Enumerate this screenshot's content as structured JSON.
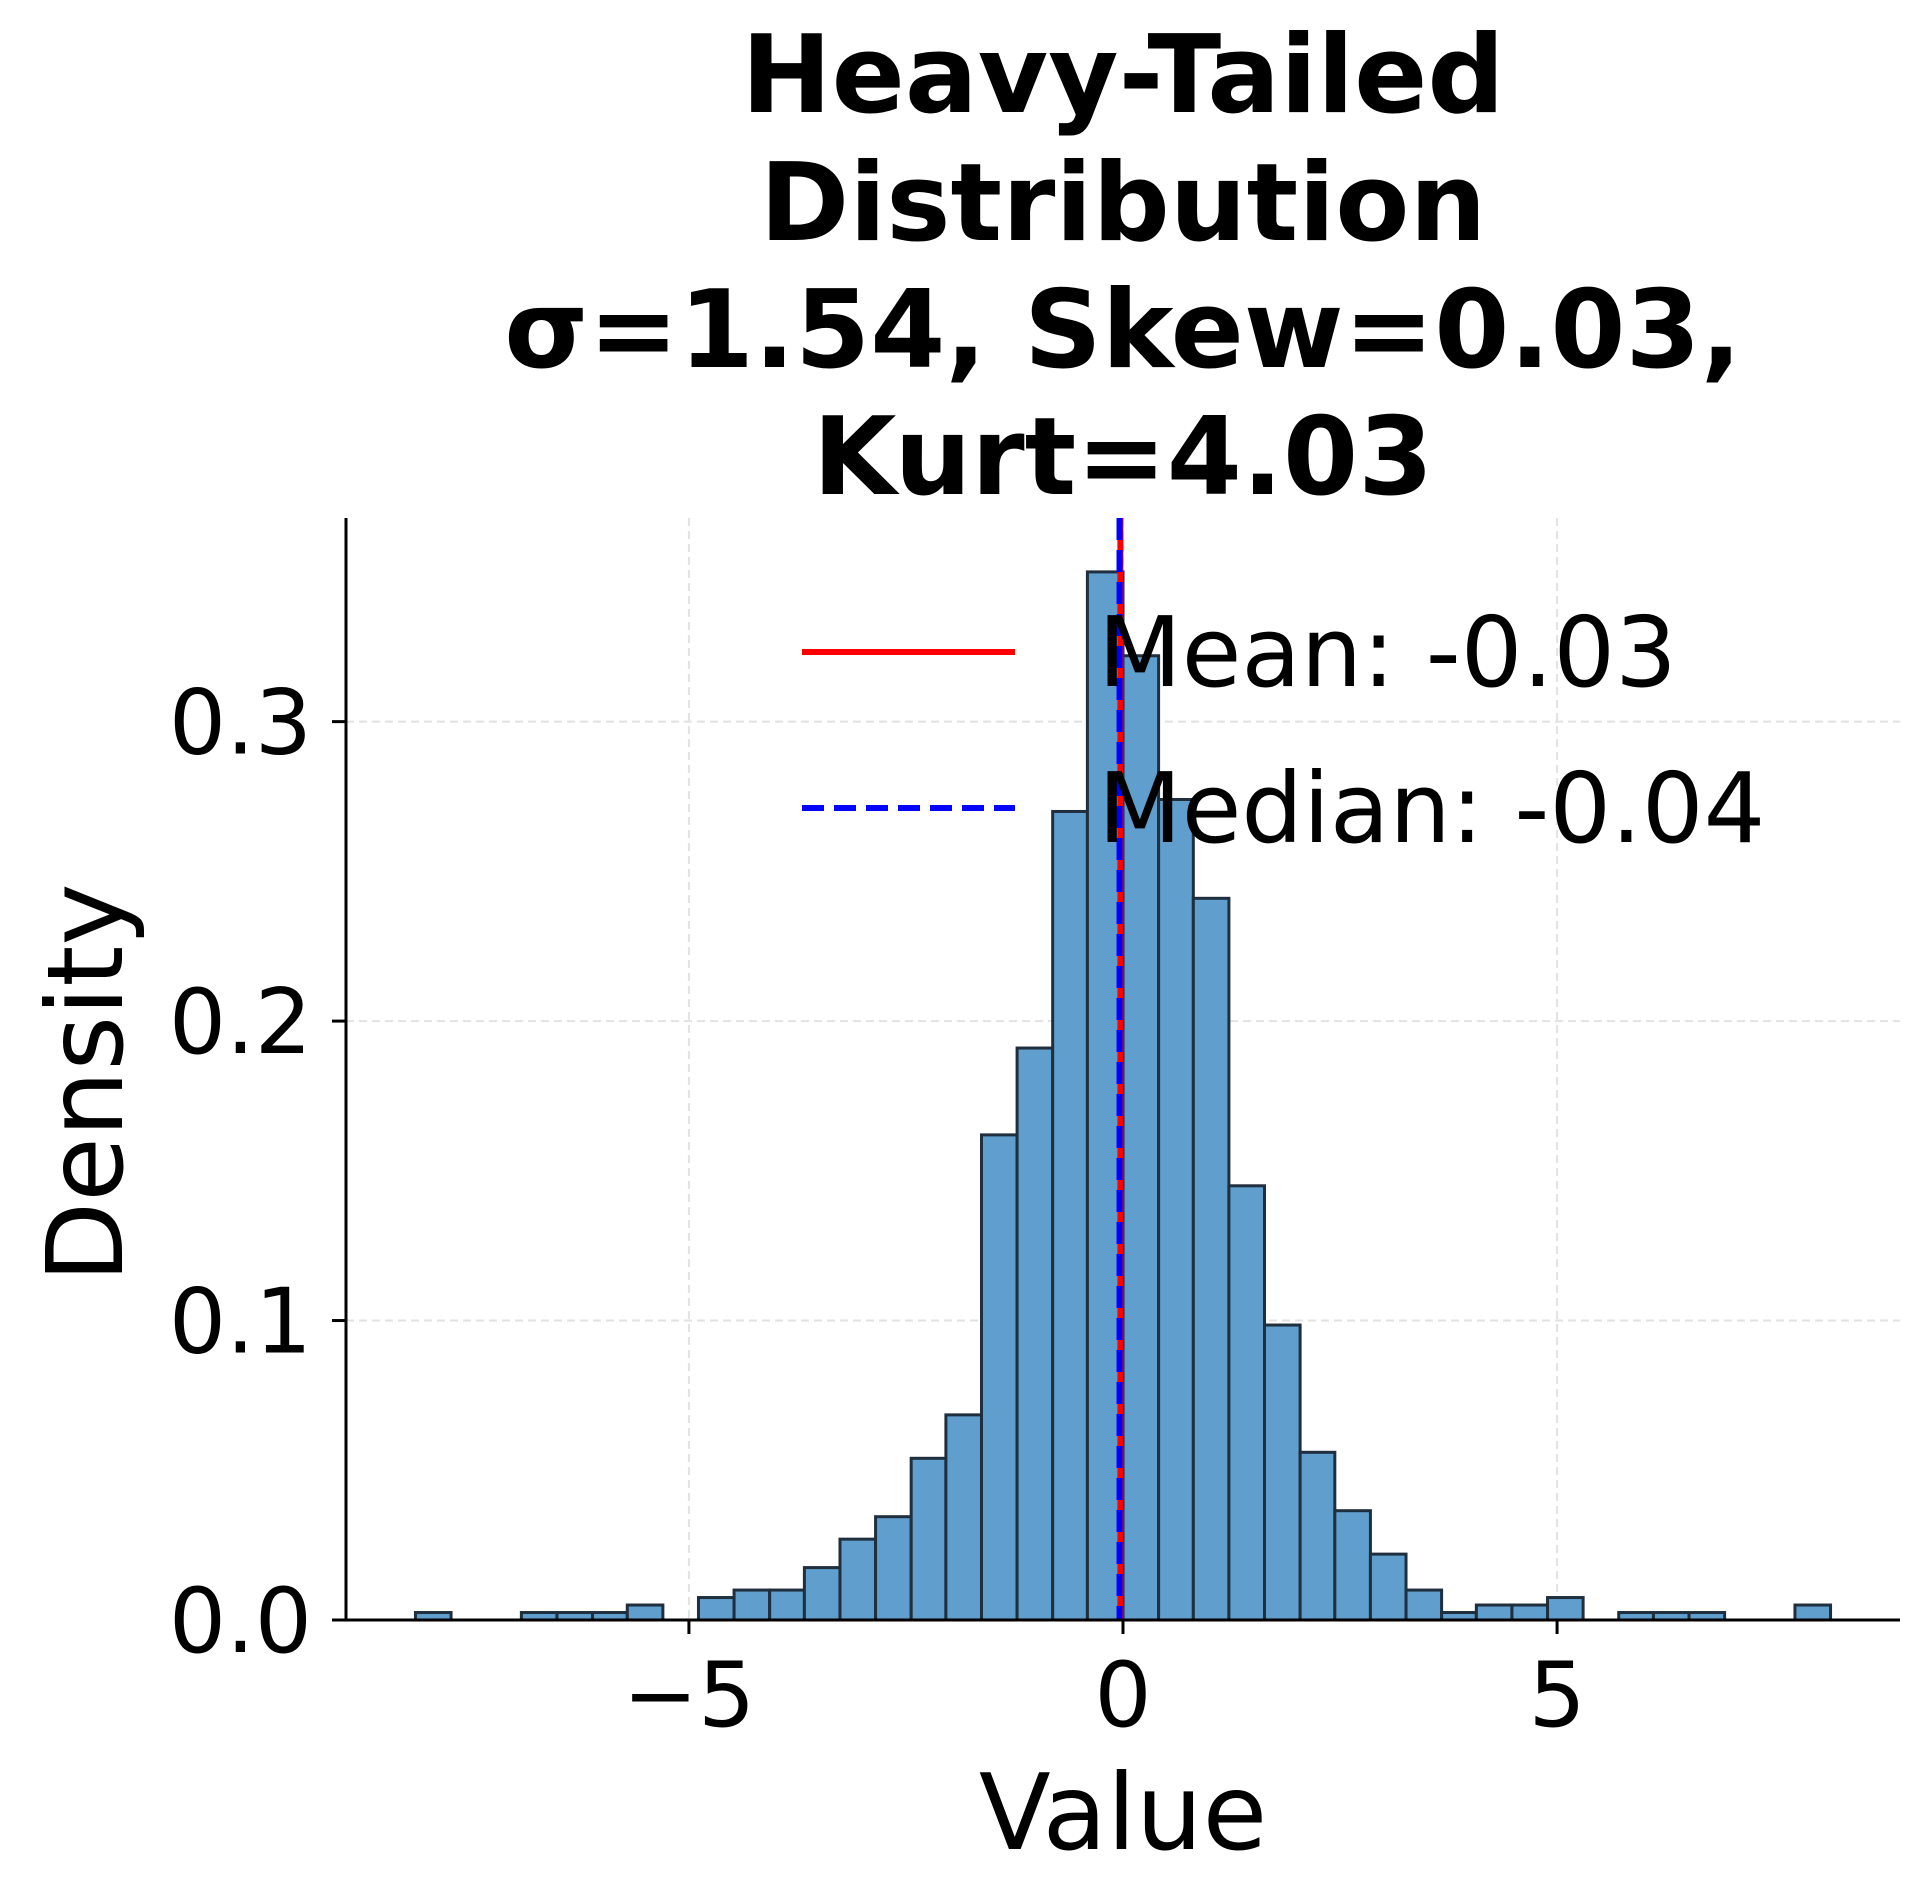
{
  "chart_data": {
    "type": "bar",
    "title_lines": [
      "Heavy-Tailed",
      "Distribution",
      "σ=1.54, Skew=0.03,",
      "Kurt=4.03"
    ],
    "xlabel": "Value",
    "ylabel": "Density",
    "xlim": [
      -8.95,
      8.95
    ],
    "ylim": [
      0,
      0.368
    ],
    "x_ticks": [
      {
        "value": -5,
        "label": "−5"
      },
      {
        "value": 0,
        "label": "0"
      },
      {
        "value": 5,
        "label": "5"
      }
    ],
    "y_ticks": [
      {
        "value": 0.0,
        "label": "0.0"
      },
      {
        "value": 0.1,
        "label": "0.1"
      },
      {
        "value": 0.2,
        "label": "0.2"
      },
      {
        "value": 0.3,
        "label": "0.3"
      }
    ],
    "grid": true,
    "legend_position": "top-right",
    "bar_color": "#5f9ecd",
    "bar_edge_color": "#1f2f3d",
    "bins": [
      {
        "x0": -8.15,
        "x1": -7.74,
        "density": 0.0025
      },
      {
        "x0": -6.93,
        "x1": -6.52,
        "density": 0.0025
      },
      {
        "x0": -6.52,
        "x1": -6.11,
        "density": 0.0025
      },
      {
        "x0": -6.11,
        "x1": -5.71,
        "density": 0.0025
      },
      {
        "x0": -5.71,
        "x1": -5.3,
        "density": 0.005
      },
      {
        "x0": -4.89,
        "x1": -4.48,
        "density": 0.0075
      },
      {
        "x0": -4.48,
        "x1": -4.07,
        "density": 0.01
      },
      {
        "x0": -4.07,
        "x1": -3.67,
        "density": 0.01
      },
      {
        "x0": -3.67,
        "x1": -3.26,
        "density": 0.0175
      },
      {
        "x0": -3.26,
        "x1": -2.85,
        "density": 0.027
      },
      {
        "x0": -2.85,
        "x1": -2.44,
        "density": 0.0345
      },
      {
        "x0": -2.44,
        "x1": -2.04,
        "density": 0.054
      },
      {
        "x0": -2.04,
        "x1": -1.63,
        "density": 0.0685
      },
      {
        "x0": -1.63,
        "x1": -1.22,
        "density": 0.162
      },
      {
        "x0": -1.22,
        "x1": -0.81,
        "density": 0.191
      },
      {
        "x0": -0.81,
        "x1": -0.41,
        "density": 0.27
      },
      {
        "x0": -0.41,
        "x1": 0.0,
        "density": 0.35
      },
      {
        "x0": 0.0,
        "x1": 0.41,
        "density": 0.322
      },
      {
        "x0": 0.41,
        "x1": 0.81,
        "density": 0.274
      },
      {
        "x0": 0.81,
        "x1": 1.22,
        "density": 0.241
      },
      {
        "x0": 1.22,
        "x1": 1.63,
        "density": 0.145
      },
      {
        "x0": 1.63,
        "x1": 2.04,
        "density": 0.0985
      },
      {
        "x0": 2.04,
        "x1": 2.44,
        "density": 0.056
      },
      {
        "x0": 2.44,
        "x1": 2.85,
        "density": 0.0365
      },
      {
        "x0": 2.85,
        "x1": 3.26,
        "density": 0.022
      },
      {
        "x0": 3.26,
        "x1": 3.67,
        "density": 0.01
      },
      {
        "x0": 3.67,
        "x1": 4.07,
        "density": 0.0025
      },
      {
        "x0": 4.07,
        "x1": 4.48,
        "density": 0.005
      },
      {
        "x0": 4.48,
        "x1": 4.89,
        "density": 0.005
      },
      {
        "x0": 4.89,
        "x1": 5.3,
        "density": 0.0075
      },
      {
        "x0": 5.71,
        "x1": 6.11,
        "density": 0.0025
      },
      {
        "x0": 6.11,
        "x1": 6.52,
        "density": 0.0025
      },
      {
        "x0": 6.52,
        "x1": 6.93,
        "density": 0.0025
      },
      {
        "x0": 7.74,
        "x1": 8.15,
        "density": 0.005
      }
    ],
    "lines": [
      {
        "name": "Mean",
        "value": -0.03,
        "label": "Mean: -0.03",
        "color": "#ff0000",
        "style": "solid"
      },
      {
        "name": "Median",
        "value": -0.04,
        "label": "Median: -0.04",
        "color": "#0000ff",
        "style": "dashed"
      }
    ]
  }
}
